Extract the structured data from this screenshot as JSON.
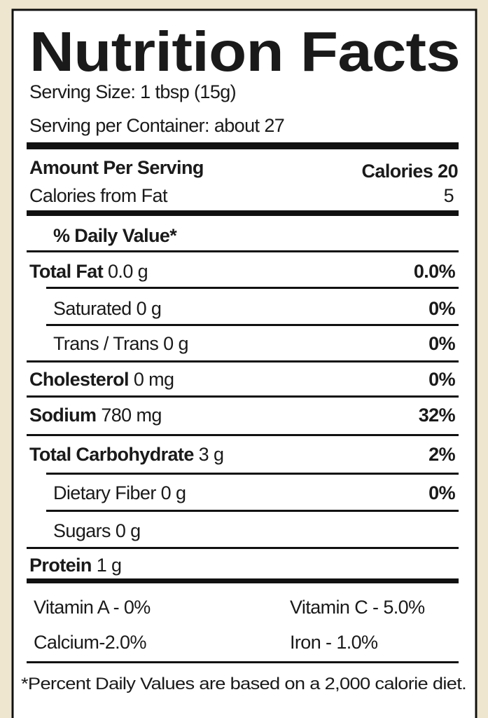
{
  "title": "Nutrition Facts",
  "serving_size": "Serving Size: 1 tbsp (15g)",
  "servings_per_container": "Serving per Container: about 27",
  "amount_per_serving": "Amount Per Serving",
  "calories": "Calories 20",
  "calories_from_fat": {
    "label": "Calories from Fat",
    "value": "5"
  },
  "daily_value_header": "% Daily Value*",
  "nutrients": [
    {
      "name": "Total Fat",
      "amount": "0.0 g",
      "dv": "0.0%"
    },
    {
      "name": "Saturated",
      "amount": "0 g",
      "dv": "0%"
    },
    {
      "name": "Trans / Trans",
      "amount": "0 g",
      "dv": "0%"
    },
    {
      "name": "Cholesterol",
      "amount": "0 mg",
      "dv": "0%"
    },
    {
      "name": "Sodium",
      "amount": "780 mg",
      "dv": "32%"
    },
    {
      "name": "Total Carbohydrate",
      "amount": "3 g",
      "dv": "2%"
    },
    {
      "name": "Dietary Fiber",
      "amount": "0 g",
      "dv": "0%"
    },
    {
      "name": "Sugars",
      "amount": "0 g"
    },
    {
      "name": "Protein",
      "amount": "1 g"
    }
  ],
  "vitamins": [
    [
      "Vitamin A - 0%",
      "Vitamin C - 5.0%"
    ],
    [
      "Calcium-2.0%",
      "Iron - 1.0%"
    ]
  ],
  "footnote": "*Percent Daily Values are based on a 2,000 calorie diet."
}
